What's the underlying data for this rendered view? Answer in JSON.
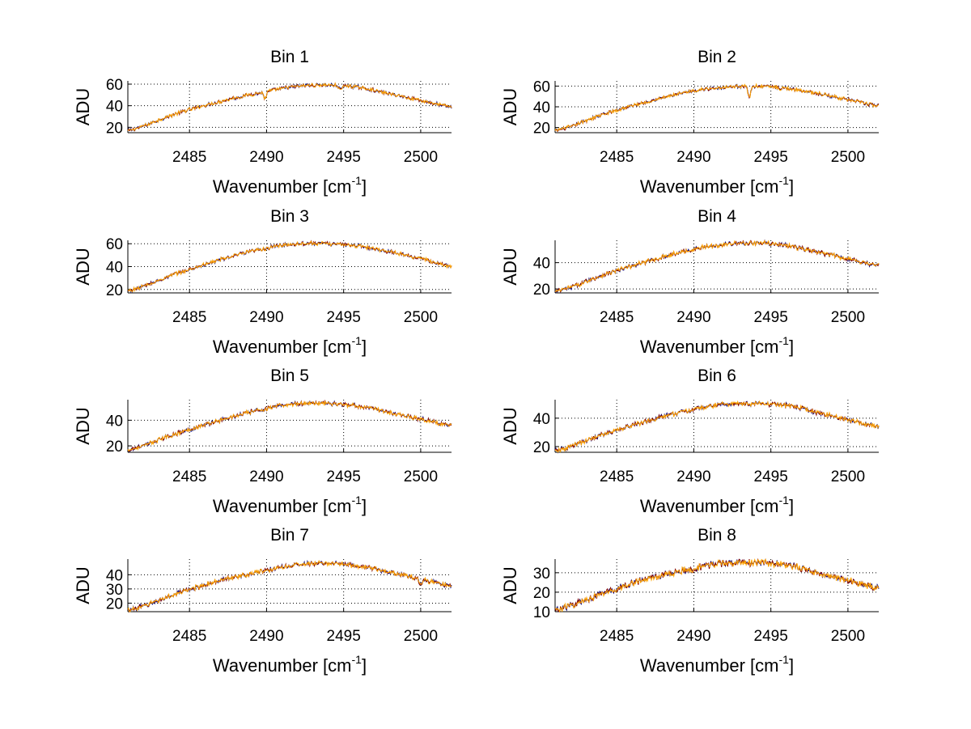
{
  "chart_data": [
    {
      "type": "line",
      "title": "Bin 1",
      "xlabel": "Wavenumber [cm",
      "xlabel_sup": "-1",
      "xlabel_end": "]",
      "ylabel": "ADU",
      "xlim": [
        2481,
        2502
      ],
      "ylim": [
        15,
        63
      ],
      "xticks": [
        "2485",
        "2490",
        "2495",
        "2500"
      ],
      "yticks": [
        "20",
        "40",
        "60"
      ],
      "grid": true,
      "series_colors": [
        "#00007f",
        "#7f0000",
        "#ffa500"
      ],
      "curve": {
        "x": [
          2481,
          2484,
          2487,
          2490,
          2492,
          2494,
          2496,
          2498,
          2500,
          2502
        ],
        "y": [
          17,
          32,
          44,
          53,
          58,
          59,
          57,
          51,
          45,
          39
        ]
      },
      "dips": [
        [
          2489.9,
          -6
        ],
        [
          2494.8,
          -4
        ]
      ]
    },
    {
      "type": "line",
      "title": "Bin 2",
      "xlabel": "Wavenumber [cm",
      "xlabel_sup": "-1",
      "xlabel_end": "]",
      "ylabel": "ADU",
      "xlim": [
        2481,
        2502
      ],
      "ylim": [
        15,
        65
      ],
      "xticks": [
        "2485",
        "2490",
        "2495",
        "2500"
      ],
      "yticks": [
        "20",
        "40",
        "60"
      ],
      "grid": true,
      "series_colors": [
        "#00007f",
        "#7f0000",
        "#ffa500"
      ],
      "curve": {
        "x": [
          2481,
          2484,
          2487,
          2490,
          2492,
          2494,
          2496,
          2498,
          2500,
          2502
        ],
        "y": [
          17,
          32,
          45,
          55,
          59,
          60,
          58,
          53,
          47,
          41
        ]
      },
      "dips": [
        [
          2493.6,
          -11
        ],
        [
          2495.6,
          -3
        ]
      ]
    },
    {
      "type": "line",
      "title": "Bin 3",
      "xlabel": "Wavenumber [cm",
      "xlabel_sup": "-1",
      "xlabel_end": "]",
      "ylabel": "ADU",
      "xlim": [
        2481,
        2502
      ],
      "ylim": [
        17,
        63
      ],
      "xticks": [
        "2485",
        "2490",
        "2495",
        "2500"
      ],
      "yticks": [
        "20",
        "40",
        "60"
      ],
      "grid": true,
      "series_colors": [
        "#00007f",
        "#7f0000",
        "#ffa500"
      ],
      "curve": {
        "x": [
          2481,
          2484,
          2487,
          2490,
          2492,
          2494,
          2496,
          2498,
          2500,
          2502
        ],
        "y": [
          19,
          33,
          46,
          56,
          60,
          60,
          58,
          53,
          47,
          40
        ]
      },
      "dips": []
    },
    {
      "type": "line",
      "title": "Bin 4",
      "xlabel": "Wavenumber [cm",
      "xlabel_sup": "-1",
      "xlabel_end": "]",
      "ylabel": "ADU",
      "xlim": [
        2481,
        2502
      ],
      "ylim": [
        17,
        57
      ],
      "xticks": [
        "2485",
        "2490",
        "2495",
        "2500"
      ],
      "yticks": [
        "20",
        "40"
      ],
      "grid": true,
      "series_colors": [
        "#00007f",
        "#7f0000",
        "#ffa500"
      ],
      "curve": {
        "x": [
          2481,
          2484,
          2487,
          2490,
          2492,
          2494,
          2496,
          2498,
          2500,
          2502
        ],
        "y": [
          18,
          30,
          41,
          50,
          54,
          55,
          53,
          48,
          43,
          38
        ]
      },
      "dips": []
    },
    {
      "type": "line",
      "title": "Bin 5",
      "xlabel": "Wavenumber [cm",
      "xlabel_sup": "-1",
      "xlabel_end": "]",
      "ylabel": "ADU",
      "xlim": [
        2481,
        2502
      ],
      "ylim": [
        15,
        56
      ],
      "xticks": [
        "2485",
        "2490",
        "2495",
        "2500"
      ],
      "yticks": [
        "20",
        "40"
      ],
      "grid": true,
      "series_colors": [
        "#00007f",
        "#7f0000",
        "#ffa500"
      ],
      "curve": {
        "x": [
          2481,
          2484,
          2487,
          2490,
          2492,
          2494,
          2496,
          2498,
          2500,
          2502
        ],
        "y": [
          17,
          29,
          40,
          49,
          53,
          53,
          51,
          46,
          41,
          36
        ]
      },
      "dips": []
    },
    {
      "type": "line",
      "title": "Bin 6",
      "xlabel": "Wavenumber [cm",
      "xlabel_sup": "-1",
      "xlabel_end": "]",
      "ylabel": "ADU",
      "xlim": [
        2481,
        2502
      ],
      "ylim": [
        16,
        53
      ],
      "xticks": [
        "2485",
        "2490",
        "2495",
        "2500"
      ],
      "yticks": [
        "20",
        "40"
      ],
      "grid": true,
      "series_colors": [
        "#00007f",
        "#7f0000",
        "#ffa500"
      ],
      "curve": {
        "x": [
          2481,
          2484,
          2487,
          2490,
          2492,
          2494,
          2496,
          2498,
          2500,
          2502
        ],
        "y": [
          17,
          28,
          38,
          46,
          50,
          50,
          49,
          44,
          39,
          34
        ]
      },
      "dips": []
    },
    {
      "type": "line",
      "title": "Bin 7",
      "xlabel": "Wavenumber [cm",
      "xlabel_sup": "-1",
      "xlabel_end": "]",
      "ylabel": "ADU",
      "xlim": [
        2481,
        2502
      ],
      "ylim": [
        14,
        51
      ],
      "xticks": [
        "2485",
        "2490",
        "2495",
        "2500"
      ],
      "yticks": [
        "20",
        "30",
        "40"
      ],
      "grid": true,
      "series_colors": [
        "#00007f",
        "#7f0000",
        "#ffa500"
      ],
      "curve": {
        "x": [
          2481,
          2484,
          2487,
          2490,
          2492,
          2494,
          2496,
          2498,
          2500,
          2502
        ],
        "y": [
          15,
          26,
          36,
          43,
          47,
          48,
          46,
          42,
          37,
          32
        ]
      },
      "dips": [
        [
          2500,
          -4
        ]
      ]
    },
    {
      "type": "line",
      "title": "Bin 8",
      "xlabel": "Wavenumber [cm",
      "xlabel_sup": "-1",
      "xlabel_end": "]",
      "ylabel": "ADU",
      "xlim": [
        2481,
        2502
      ],
      "ylim": [
        10,
        37
      ],
      "xticks": [
        "2485",
        "2490",
        "2495",
        "2500"
      ],
      "yticks": [
        "10",
        "20",
        "30"
      ],
      "grid": true,
      "series_colors": [
        "#00007f",
        "#7f0000",
        "#ffa500"
      ],
      "curve": {
        "x": [
          2481,
          2484,
          2487,
          2490,
          2492,
          2494,
          2496,
          2498,
          2500,
          2502
        ],
        "y": [
          11,
          19,
          27,
          32,
          35,
          35,
          34,
          30,
          26,
          22
        ]
      },
      "dips": []
    }
  ]
}
